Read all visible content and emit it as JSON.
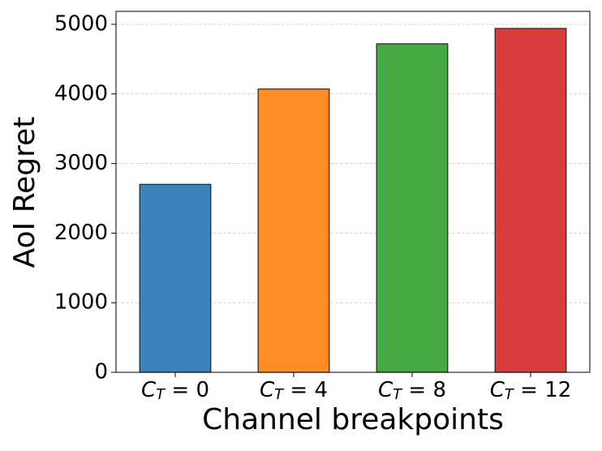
{
  "chart_data": {
    "type": "bar",
    "xlabel": "Channel breakpoints",
    "ylabel": "AoI Regret",
    "categories": [
      "CT = 0",
      "CT = 4",
      "CT = 8",
      "CT = 12"
    ],
    "values": [
      2700,
      4070,
      4720,
      4940
    ],
    "colors": [
      "#3a84bb",
      "#ff8c27",
      "#44a943",
      "#d93c3d"
    ],
    "ylim": [
      0,
      5186
    ],
    "yticks": [
      0,
      1000,
      2000,
      3000,
      4000,
      5000
    ],
    "grid": true
  }
}
